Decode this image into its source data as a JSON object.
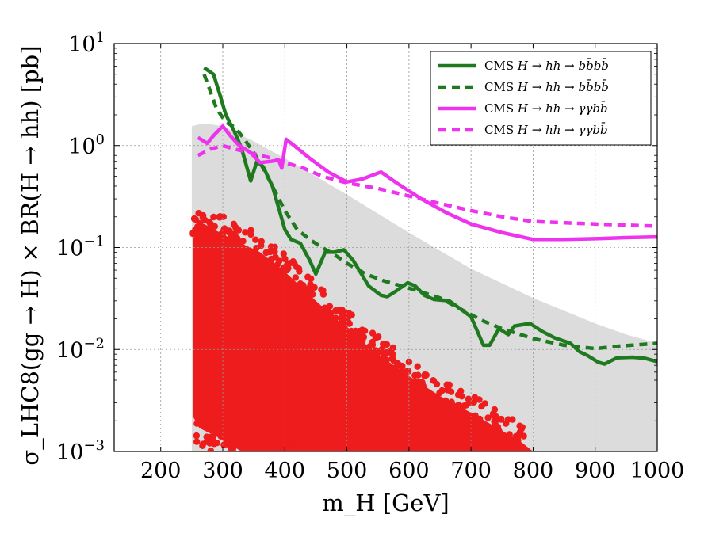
{
  "chart_data": {
    "type": "line",
    "xlabel": "m_H [GeV]",
    "ylabel": "σ_LHC8(gg → H) × BR(H → hh) [pb]",
    "xlim": [
      125,
      1000
    ],
    "ylim": [
      0.001,
      10
    ],
    "yscale": "log",
    "grid": true,
    "legend_position": "top-right",
    "x_ticks": [
      200,
      300,
      400,
      500,
      600,
      700,
      800,
      900,
      1000
    ],
    "y_ticks": [
      {
        "value": 0.001,
        "mantissa": "10",
        "exp": "−3"
      },
      {
        "value": 0.01,
        "mantissa": "10",
        "exp": "−2"
      },
      {
        "value": 0.1,
        "mantissa": "10",
        "exp": "−1"
      },
      {
        "value": 1,
        "mantissa": "10",
        "exp": "0"
      },
      {
        "value": 10,
        "mantissa": "10",
        "exp": "1"
      }
    ],
    "colors": {
      "band": "#dcdcdc",
      "scan": "#ee1c1c",
      "green": "#1f7a1f",
      "magenta": "#ee33ee",
      "grid": "#999999"
    },
    "band": {
      "name": "allowed region",
      "upper": [
        [
          250,
          1.55
        ],
        [
          270,
          1.65
        ],
        [
          300,
          1.55
        ],
        [
          350,
          1.1
        ],
        [
          400,
          0.75
        ],
        [
          450,
          0.5
        ],
        [
          500,
          0.33
        ],
        [
          600,
          0.14
        ],
        [
          700,
          0.062
        ],
        [
          800,
          0.032
        ],
        [
          900,
          0.018
        ],
        [
          950,
          0.014
        ],
        [
          1000,
          0.0115
        ]
      ],
      "lower_value": 0.001
    },
    "scan_points": {
      "name": "scan points",
      "upper": [
        [
          252,
          0.12
        ],
        [
          260,
          0.16
        ],
        [
          270,
          0.17
        ],
        [
          300,
          0.135
        ],
        [
          330,
          0.11
        ],
        [
          360,
          0.09
        ],
        [
          400,
          0.058
        ],
        [
          450,
          0.03
        ],
        [
          500,
          0.016
        ],
        [
          550,
          0.009
        ],
        [
          600,
          0.0055
        ],
        [
          650,
          0.0035
        ],
        [
          700,
          0.0024
        ],
        [
          750,
          0.0016
        ],
        [
          780,
          0.00125
        ],
        [
          800,
          0.001
        ]
      ],
      "lower": [
        [
          252,
          0.0022
        ],
        [
          262,
          0.0017
        ],
        [
          300,
          0.0013
        ],
        [
          330,
          0.001
        ]
      ]
    },
    "series": [
      {
        "name": "CMS H → hh → bb̄bb̄ (observed)",
        "legend": {
          "prefix": "CMS ",
          "math": "H → hh → bb̄bb̄"
        },
        "color": "#1f7a1f",
        "style": "solid",
        "points": [
          [
            270,
            5.8
          ],
          [
            285,
            5.0
          ],
          [
            295,
            3.2
          ],
          [
            305,
            2.0
          ],
          [
            318,
            1.4
          ],
          [
            330,
            0.95
          ],
          [
            345,
            0.45
          ],
          [
            355,
            0.7
          ],
          [
            365,
            0.62
          ],
          [
            380,
            0.4
          ],
          [
            400,
            0.15
          ],
          [
            410,
            0.12
          ],
          [
            425,
            0.11
          ],
          [
            440,
            0.075
          ],
          [
            450,
            0.055
          ],
          [
            465,
            0.09
          ],
          [
            480,
            0.09
          ],
          [
            495,
            0.095
          ],
          [
            510,
            0.075
          ],
          [
            535,
            0.042
          ],
          [
            555,
            0.034
          ],
          [
            565,
            0.033
          ],
          [
            578,
            0.037
          ],
          [
            598,
            0.045
          ],
          [
            610,
            0.042
          ],
          [
            625,
            0.034
          ],
          [
            640,
            0.031
          ],
          [
            665,
            0.03
          ],
          [
            700,
            0.021
          ],
          [
            720,
            0.011
          ],
          [
            730,
            0.011
          ],
          [
            745,
            0.016
          ],
          [
            760,
            0.014
          ],
          [
            770,
            0.017
          ],
          [
            795,
            0.018
          ],
          [
            815,
            0.015
          ],
          [
            835,
            0.013
          ],
          [
            860,
            0.0115
          ],
          [
            875,
            0.0095
          ],
          [
            888,
            0.0087
          ],
          [
            905,
            0.0075
          ],
          [
            915,
            0.0072
          ],
          [
            935,
            0.0083
          ],
          [
            960,
            0.0084
          ],
          [
            980,
            0.0082
          ],
          [
            1000,
            0.0076
          ]
        ]
      },
      {
        "name": "CMS H → hh → bb̄bb̄ (expected)",
        "legend": {
          "prefix": "CMS ",
          "math": "H → hh → bb̄bb̄"
        },
        "color": "#1f7a1f",
        "style": "dashed",
        "points": [
          [
            270,
            5.0
          ],
          [
            290,
            2.3
          ],
          [
            305,
            1.7
          ],
          [
            320,
            1.5
          ],
          [
            335,
            1.15
          ],
          [
            350,
            0.85
          ],
          [
            365,
            0.6
          ],
          [
            380,
            0.4
          ],
          [
            400,
            0.23
          ],
          [
            420,
            0.15
          ],
          [
            440,
            0.12
          ],
          [
            460,
            0.1
          ],
          [
            480,
            0.085
          ],
          [
            500,
            0.07
          ],
          [
            530,
            0.055
          ],
          [
            560,
            0.047
          ],
          [
            600,
            0.04
          ],
          [
            650,
            0.032
          ],
          [
            700,
            0.022
          ],
          [
            720,
            0.019
          ],
          [
            750,
            0.016
          ],
          [
            800,
            0.0128
          ],
          [
            850,
            0.011
          ],
          [
            900,
            0.0102
          ],
          [
            940,
            0.0108
          ],
          [
            1000,
            0.0115
          ]
        ]
      },
      {
        "name": "CMS H → hh → γγbb̄ (observed)",
        "legend": {
          "prefix": "CMS ",
          "math": "H → hh → γγbb̄"
        },
        "color": "#ee33ee",
        "style": "solid",
        "points": [
          [
            260,
            1.2
          ],
          [
            275,
            1.05
          ],
          [
            285,
            1.25
          ],
          [
            300,
            1.55
          ],
          [
            312,
            1.25
          ],
          [
            325,
            1.02
          ],
          [
            345,
            0.85
          ],
          [
            360,
            0.68
          ],
          [
            378,
            0.7
          ],
          [
            390,
            0.72
          ],
          [
            395,
            0.6
          ],
          [
            402,
            1.15
          ],
          [
            415,
            1.0
          ],
          [
            440,
            0.75
          ],
          [
            470,
            0.55
          ],
          [
            500,
            0.44
          ],
          [
            525,
            0.47
          ],
          [
            555,
            0.55
          ],
          [
            580,
            0.43
          ],
          [
            620,
            0.3
          ],
          [
            660,
            0.22
          ],
          [
            700,
            0.17
          ],
          [
            750,
            0.14
          ],
          [
            800,
            0.12
          ],
          [
            850,
            0.12
          ],
          [
            900,
            0.122
          ],
          [
            950,
            0.125
          ],
          [
            1000,
            0.127
          ]
        ]
      },
      {
        "name": "CMS H → hh → γγbb̄ (expected)",
        "legend": {
          "prefix": "CMS ",
          "math": "H → hh → γγbb̄"
        },
        "color": "#ee33ee",
        "style": "dashed",
        "points": [
          [
            260,
            0.8
          ],
          [
            280,
            0.92
          ],
          [
            300,
            1.0
          ],
          [
            320,
            0.92
          ],
          [
            340,
            0.86
          ],
          [
            360,
            0.8
          ],
          [
            380,
            0.75
          ],
          [
            400,
            0.68
          ],
          [
            430,
            0.6
          ],
          [
            460,
            0.5
          ],
          [
            500,
            0.43
          ],
          [
            550,
            0.38
          ],
          [
            600,
            0.32
          ],
          [
            650,
            0.27
          ],
          [
            700,
            0.23
          ],
          [
            750,
            0.2
          ],
          [
            800,
            0.18
          ],
          [
            900,
            0.17
          ],
          [
            1000,
            0.162
          ]
        ]
      }
    ]
  }
}
